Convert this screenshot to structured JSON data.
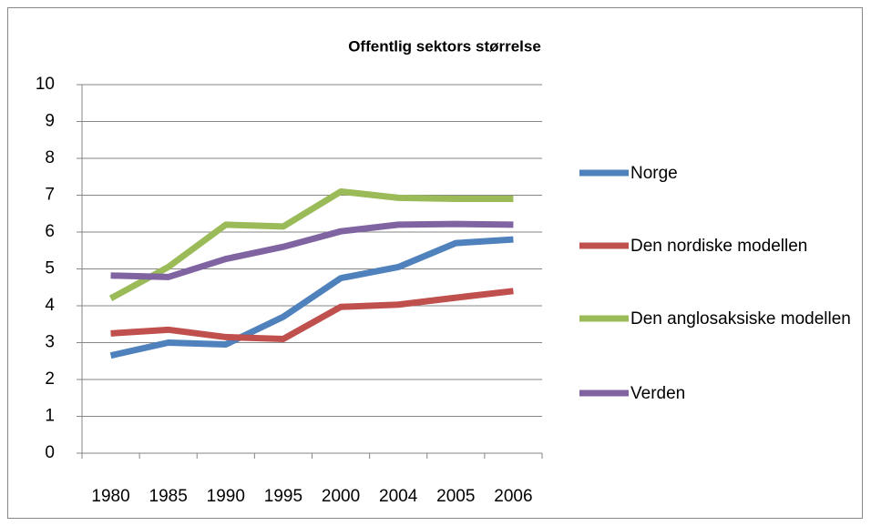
{
  "chart_data": {
    "type": "line",
    "title": "Offentlig sektors størrelse",
    "categories": [
      "1980",
      "1985",
      "1990",
      "1995",
      "2000",
      "2004",
      "2005",
      "2006"
    ],
    "series": [
      {
        "name": "Norge",
        "color": "#4f81bd",
        "values": [
          2.65,
          3.0,
          2.95,
          3.7,
          4.75,
          5.05,
          5.7,
          5.8
        ]
      },
      {
        "name": "Den nordiske modellen",
        "color": "#c0504d",
        "values": [
          3.25,
          3.35,
          3.15,
          3.1,
          3.97,
          4.03,
          4.22,
          4.4
        ]
      },
      {
        "name": "Den anglosaksiske modellen",
        "color": "#9bbb59",
        "values": [
          4.2,
          5.05,
          6.2,
          6.15,
          7.1,
          6.93,
          6.9,
          6.9
        ]
      },
      {
        "name": "Verden",
        "color": "#8064a2",
        "values": [
          4.82,
          4.78,
          5.27,
          5.6,
          6.02,
          6.2,
          6.22,
          6.2
        ]
      }
    ],
    "ylim": [
      0,
      10
    ],
    "yticks": [
      0,
      1,
      2,
      3,
      4,
      5,
      6,
      7,
      8,
      9,
      10
    ],
    "grid": true,
    "legend": "right"
  }
}
